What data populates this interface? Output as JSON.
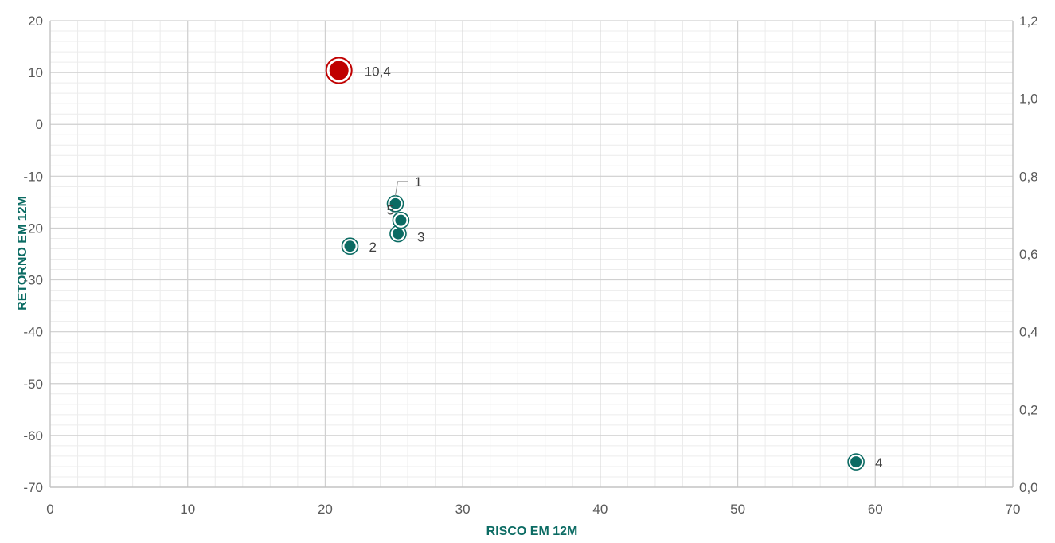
{
  "chart_data": {
    "type": "scatter",
    "title": "",
    "xlabel": "RISCO EM 12M",
    "ylabel": "RETORNO EM 12M",
    "xlim": [
      0,
      70
    ],
    "ylim": [
      -70,
      20
    ],
    "y2lim": [
      0,
      1.2
    ],
    "x_ticks": [
      "0",
      "10",
      "20",
      "30",
      "40",
      "50",
      "60",
      "70"
    ],
    "y_ticks": [
      "-70",
      "-60",
      "-50",
      "-40",
      "-30",
      "-20",
      "-10",
      "0",
      "10",
      "20"
    ],
    "y2_ticks": [
      "0,0",
      "0,2",
      "0,4",
      "0,6",
      "0,8",
      "1,0",
      "1,2"
    ],
    "grid": true,
    "legend": "none",
    "series": [
      {
        "color": "#c00000",
        "points": [
          {
            "x": 21.0,
            "y": 10.4,
            "label": "10,4"
          }
        ]
      },
      {
        "color": "#0b6b63",
        "points": [
          {
            "x": 25.1,
            "y": -15.3,
            "label": "1"
          },
          {
            "x": 21.8,
            "y": -23.5,
            "label": "2"
          },
          {
            "x": 25.3,
            "y": -21.1,
            "label": "3"
          },
          {
            "x": 58.6,
            "y": -65.1,
            "label": "4"
          },
          {
            "x": 25.5,
            "y": -18.5,
            "label": "5"
          }
        ]
      }
    ]
  }
}
